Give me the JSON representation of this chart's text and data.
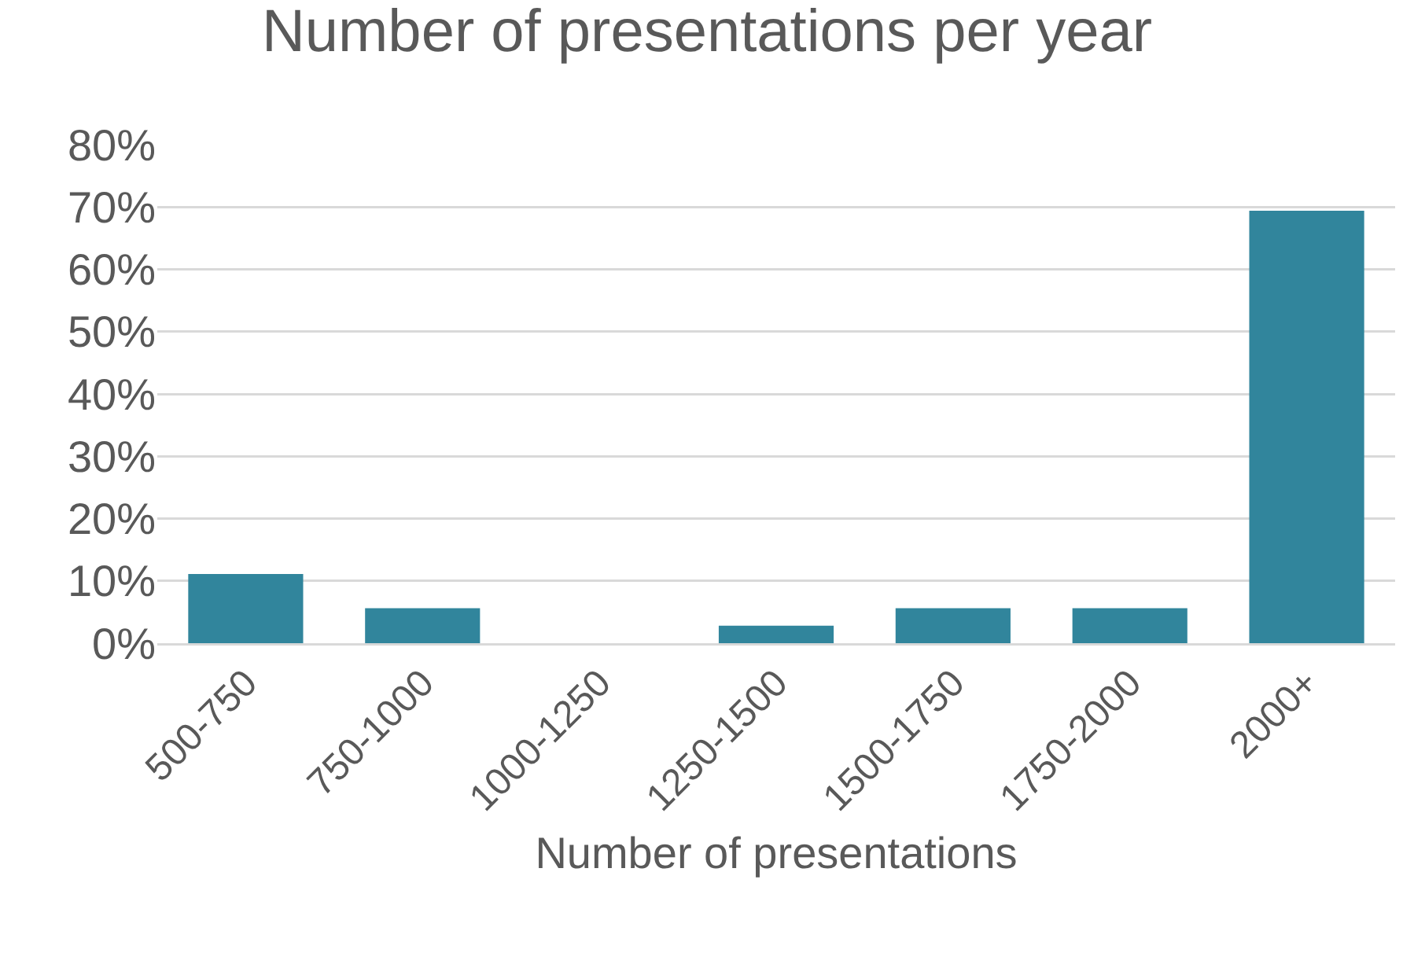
{
  "chart_data": {
    "type": "bar",
    "title": "Number of presentations per year",
    "xlabel": "Number of presentations",
    "categories": [
      "500-750",
      "750-1000",
      "1000-1250",
      "1250-1500",
      "1500-1750",
      "1750-2000",
      "2000+"
    ],
    "values": [
      11.1,
      5.6,
      0,
      2.8,
      5.6,
      5.6,
      69.4
    ],
    "color": "#31859c",
    "ylim": [
      0,
      80
    ],
    "yticks": [
      {
        "value": 0,
        "label": "0%"
      },
      {
        "value": 10,
        "label": "10%"
      },
      {
        "value": 20,
        "label": "20%"
      },
      {
        "value": 30,
        "label": "30%"
      },
      {
        "value": 40,
        "label": "40%"
      },
      {
        "value": 50,
        "label": "50%"
      },
      {
        "value": 60,
        "label": "60%"
      },
      {
        "value": 70,
        "label": "70%"
      },
      {
        "value": 80,
        "label": "80%"
      }
    ],
    "grid": "y",
    "legend": false
  }
}
